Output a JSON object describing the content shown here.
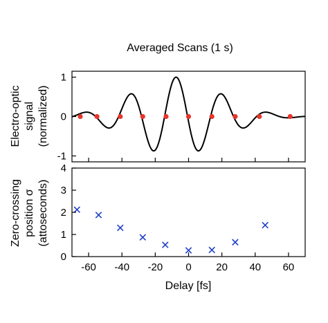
{
  "colors": {
    "waveform": "#000000",
    "crossing_marker": "#e8352b",
    "sigma_marker": "#1f3fc8",
    "axes": "#000000"
  },
  "chart_data": [
    {
      "type": "line",
      "title": "Averaged Scans (1 s)",
      "ylabel_lines": [
        "Electro-optic",
        "signal",
        "(normalized)"
      ],
      "xlim": [
        -70,
        70
      ],
      "ylim": [
        -1.15,
        1.15
      ],
      "xticks": [
        -60,
        -40,
        -20,
        0,
        20,
        40,
        60
      ],
      "yticks": [
        -1,
        0,
        1
      ],
      "ytick_labels": [
        "-1",
        "0",
        "1"
      ],
      "grid": false,
      "waveform_model": {
        "carrier_period_fs": 27.6,
        "envelope_gaussian_sigma_fs": 26,
        "peak_delay_fs": -7.5
      },
      "zero_crossings_x": [
        -65,
        -55,
        -41,
        -27.5,
        -13.5,
        0,
        14,
        28,
        42.5,
        61
      ],
      "zero_crossings_y": [
        0,
        0,
        0,
        0,
        0,
        0,
        0,
        0,
        0,
        0
      ]
    },
    {
      "type": "scatter",
      "ylabel_lines": [
        "Zero-crossing",
        "position σ",
        "(attoseconds)"
      ],
      "xlabel": "Delay [fs]",
      "xlim": [
        -70,
        70
      ],
      "ylim": [
        0,
        4
      ],
      "xticks": [
        -60,
        -40,
        -20,
        0,
        20,
        40,
        60
      ],
      "xtick_labels": [
        "-60",
        "-40",
        "-20",
        "0",
        "20",
        "40",
        "60"
      ],
      "yticks": [
        0,
        1,
        2,
        3,
        4
      ],
      "ytick_labels": [
        "0",
        "1",
        "2",
        "3",
        "4"
      ],
      "grid": false,
      "x": [
        -67,
        -54,
        -41,
        -27.5,
        -14,
        0,
        14,
        28,
        46
      ],
      "y": [
        2.12,
        1.88,
        1.3,
        0.87,
        0.53,
        0.28,
        0.3,
        0.65,
        1.42
      ]
    }
  ]
}
